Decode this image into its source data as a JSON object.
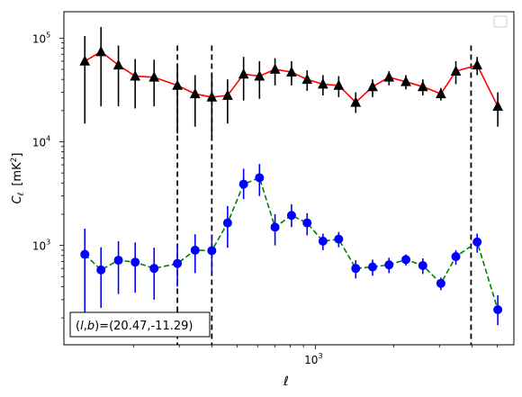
{
  "chart_data": {
    "type": "scatter",
    "xlabel": "ℓ",
    "ylabel_main": "C",
    "ylabel_sub": "ℓ",
    "ylabel_unit": "[mK",
    "ylabel_unit_sup": "2",
    "ylabel_unit_close": "]",
    "x_scale": "log",
    "y_scale": "log",
    "xlim": [
      108,
      5800
    ],
    "ylim": [
      110,
      180000
    ],
    "x_tick_labels": [
      {
        "value": 1000,
        "base": "10",
        "exp": "3"
      }
    ],
    "y_tick_labels": [
      {
        "value": 1000,
        "base": "10",
        "exp": "3"
      },
      {
        "value": 10000,
        "base": "10",
        "exp": "4"
      },
      {
        "value": 100000,
        "base": "10",
        "exp": "5"
      }
    ],
    "vlines": [
      295,
      400,
      3970
    ],
    "annotation_pre": "(",
    "annotation_l": "l",
    "annotation_comma": ",",
    "annotation_b": "b",
    "annotation_post": ")=(20.47,-11.29)",
    "legend_position": "top-right",
    "series": [
      {
        "color": "#ff0000",
        "marker": "triangle",
        "marker_color": "#000000",
        "errorbar_color": "#000000",
        "linestyle": "solid",
        "points": [
          {
            "x": 130,
            "y": 60000,
            "lo": 15000,
            "hi": 105000
          },
          {
            "x": 150,
            "y": 74000,
            "lo": 22000,
            "hi": 128000
          },
          {
            "x": 175,
            "y": 55000,
            "lo": 22000,
            "hi": 85000
          },
          {
            "x": 203,
            "y": 43000,
            "lo": 21000,
            "hi": 63000
          },
          {
            "x": 240,
            "y": 42000,
            "lo": 22000,
            "hi": 62000
          },
          {
            "x": 295,
            "y": 35000,
            "lo": 12000,
            "hi": 57000
          },
          {
            "x": 345,
            "y": 29000,
            "lo": 14000,
            "hi": 44000
          },
          {
            "x": 400,
            "y": 27000,
            "lo": 11000,
            "hi": 44000
          },
          {
            "x": 460,
            "y": 28000,
            "lo": 15000,
            "hi": 40000
          },
          {
            "x": 530,
            "y": 45000,
            "lo": 25000,
            "hi": 66000
          },
          {
            "x": 610,
            "y": 43000,
            "lo": 26000,
            "hi": 60000
          },
          {
            "x": 700,
            "y": 50000,
            "lo": 35000,
            "hi": 64000
          },
          {
            "x": 810,
            "y": 47000,
            "lo": 35000,
            "hi": 60000
          },
          {
            "x": 930,
            "y": 40000,
            "lo": 31000,
            "hi": 49000
          },
          {
            "x": 1070,
            "y": 36000,
            "lo": 28000,
            "hi": 44000
          },
          {
            "x": 1230,
            "y": 35000,
            "lo": 27000,
            "hi": 43000
          },
          {
            "x": 1430,
            "y": 24000,
            "lo": 19000,
            "hi": 30000
          },
          {
            "x": 1660,
            "y": 34000,
            "lo": 27000,
            "hi": 40000
          },
          {
            "x": 1920,
            "y": 42000,
            "lo": 35000,
            "hi": 48000
          },
          {
            "x": 2230,
            "y": 38000,
            "lo": 32000,
            "hi": 44000
          },
          {
            "x": 2590,
            "y": 34000,
            "lo": 28000,
            "hi": 40000
          },
          {
            "x": 3040,
            "y": 29000,
            "lo": 25000,
            "hi": 33000
          },
          {
            "x": 3470,
            "y": 48000,
            "lo": 36000,
            "hi": 60000
          },
          {
            "x": 4190,
            "y": 55000,
            "lo": 44000,
            "hi": 66000
          },
          {
            "x": 5030,
            "y": 22000,
            "lo": 14000,
            "hi": 30000
          }
        ]
      },
      {
        "color": "#008000",
        "marker": "circle",
        "marker_color": "#0000ff",
        "errorbar_color": "#0000ff",
        "linestyle": "dashed",
        "points": [
          {
            "x": 130,
            "y": 820,
            "lo": 220,
            "hi": 1450
          },
          {
            "x": 150,
            "y": 580,
            "lo": 250,
            "hi": 960
          },
          {
            "x": 175,
            "y": 720,
            "lo": 340,
            "hi": 1100
          },
          {
            "x": 203,
            "y": 690,
            "lo": 350,
            "hi": 1070
          },
          {
            "x": 240,
            "y": 600,
            "lo": 300,
            "hi": 950
          },
          {
            "x": 295,
            "y": 670,
            "lo": 400,
            "hi": 1000
          },
          {
            "x": 345,
            "y": 900,
            "lo": 540,
            "hi": 1280
          },
          {
            "x": 400,
            "y": 890,
            "lo": 540,
            "hi": 1270
          },
          {
            "x": 460,
            "y": 1650,
            "lo": 950,
            "hi": 2400
          },
          {
            "x": 530,
            "y": 3900,
            "lo": 2800,
            "hi": 5500
          },
          {
            "x": 610,
            "y": 4500,
            "lo": 3000,
            "hi": 6100
          },
          {
            "x": 700,
            "y": 1500,
            "lo": 1000,
            "hi": 2000
          },
          {
            "x": 810,
            "y": 1950,
            "lo": 1500,
            "hi": 2500
          },
          {
            "x": 930,
            "y": 1650,
            "lo": 1250,
            "hi": 2050
          },
          {
            "x": 1070,
            "y": 1100,
            "lo": 900,
            "hi": 1300
          },
          {
            "x": 1230,
            "y": 1150,
            "lo": 960,
            "hi": 1350
          },
          {
            "x": 1430,
            "y": 600,
            "lo": 480,
            "hi": 720
          },
          {
            "x": 1660,
            "y": 620,
            "lo": 510,
            "hi": 730
          },
          {
            "x": 1920,
            "y": 650,
            "lo": 540,
            "hi": 760
          },
          {
            "x": 2230,
            "y": 730,
            "lo": 640,
            "hi": 820
          },
          {
            "x": 2590,
            "y": 640,
            "lo": 530,
            "hi": 750
          },
          {
            "x": 3040,
            "y": 430,
            "lo": 370,
            "hi": 490
          },
          {
            "x": 3470,
            "y": 780,
            "lo": 650,
            "hi": 900
          },
          {
            "x": 4190,
            "y": 1080,
            "lo": 850,
            "hi": 1300
          },
          {
            "x": 5030,
            "y": 240,
            "lo": 170,
            "hi": 330
          }
        ]
      }
    ]
  }
}
